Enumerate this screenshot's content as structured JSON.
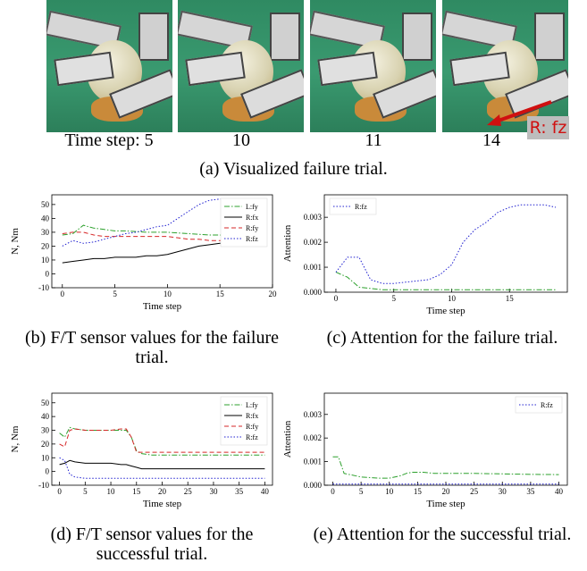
{
  "photos": {
    "labels": [
      "Time step: 5",
      "10",
      "11",
      "14"
    ],
    "annotation": "R: fz",
    "caption": "(a) Visualized failure trial."
  },
  "chart_data": [
    {
      "type": "line",
      "caption": "(b) F/T sensor values for the failure trial.",
      "x_label": "Time step",
      "y_label": "N, Nm",
      "x": [
        0,
        1,
        2,
        3,
        4,
        5,
        6,
        7,
        8,
        9,
        10,
        11,
        12,
        13,
        14,
        15,
        16,
        17,
        18,
        19
      ],
      "xlim": [
        -1,
        20
      ],
      "xticks": [
        0,
        5,
        10,
        15,
        20
      ],
      "ylim": [
        -10,
        57
      ],
      "yticks": [
        -10,
        0,
        10,
        20,
        30,
        40,
        50
      ],
      "legend": "upper right",
      "series": [
        {
          "name": "L:fy",
          "color": "#2ca02c",
          "linestyle": "dashdot",
          "values": [
            28,
            29,
            35,
            33,
            32,
            31,
            31,
            30.5,
            30,
            30,
            30,
            29.5,
            29,
            28.5,
            28,
            28,
            27,
            26,
            25,
            24
          ]
        },
        {
          "name": "R:fx",
          "color": "#000000",
          "linestyle": "solid",
          "values": [
            8,
            9,
            10,
            11,
            11,
            12,
            12,
            12,
            13,
            13,
            14,
            16,
            18,
            20,
            21,
            22,
            22,
            22,
            22,
            22
          ]
        },
        {
          "name": "R:fy",
          "color": "#d62728",
          "linestyle": "dashed",
          "values": [
            29,
            30,
            30,
            28,
            27,
            27,
            27,
            27,
            27,
            27,
            27,
            26,
            25,
            25,
            24,
            24,
            24,
            23,
            23,
            23
          ]
        },
        {
          "name": "R:fz",
          "color": "#2020d0",
          "linestyle": "dotted",
          "values": [
            20,
            24,
            22,
            23,
            25,
            27,
            29,
            30,
            32,
            34,
            35,
            40,
            45,
            50,
            53,
            54,
            54,
            54,
            53,
            52
          ]
        }
      ]
    },
    {
      "type": "line",
      "caption": "(c) Attention for the failure trial.",
      "x_label": "Time step",
      "y_label": "Attention",
      "x": [
        0,
        1,
        2,
        3,
        4,
        5,
        6,
        7,
        8,
        9,
        10,
        11,
        12,
        13,
        14,
        15,
        16,
        17,
        18,
        19
      ],
      "xlim": [
        -1,
        20
      ],
      "xticks": [
        0,
        5,
        10,
        15
      ],
      "ylim": [
        0,
        0.0039
      ],
      "yticks": [
        {
          "value": 0,
          "label": "0.000"
        },
        0.001,
        0.002,
        0.003
      ],
      "legend": "upper left",
      "series": [
        {
          "color": "#2ca02c",
          "linestyle": "dashdot",
          "values": [
            0.0008,
            0.0006,
            0.0002,
            0.00015,
            0.0001,
            0.0001,
            0.0001,
            0.0001,
            0.0001,
            0.0001,
            0.0001,
            0.0001,
            0.0001,
            0.0001,
            0.0001,
            0.0001,
            0.0001,
            0.0001,
            0.0001,
            0.0001
          ]
        },
        {
          "name": "R:fz",
          "color": "#2020d0",
          "linestyle": "dotted",
          "values": [
            0.0008,
            0.0014,
            0.0014,
            0.0005,
            0.00035,
            0.00035,
            0.0004,
            0.00045,
            0.0005,
            0.0007,
            0.0011,
            0.002,
            0.0025,
            0.0028,
            0.0032,
            0.0034,
            0.0035,
            0.0035,
            0.0035,
            0.0034
          ]
        }
      ]
    },
    {
      "type": "line",
      "caption": "(d) F/T sensor values for the successful trial.",
      "x_label": "Time step",
      "y_label": "N, Nm",
      "x": [
        0,
        1,
        2,
        3,
        5,
        8,
        10,
        12,
        13,
        14,
        15,
        16,
        18,
        20,
        25,
        30,
        35,
        40
      ],
      "xlim": [
        -1.5,
        41.5
      ],
      "xticks": [
        0,
        5,
        10,
        15,
        20,
        25,
        30,
        35,
        40
      ],
      "ylim": [
        -10,
        57
      ],
      "yticks": [
        -10,
        0,
        10,
        20,
        30,
        40,
        50
      ],
      "legend": "upper right",
      "series": [
        {
          "name": "L:fy",
          "color": "#2ca02c",
          "linestyle": "dashdot",
          "values": [
            28,
            25,
            32,
            31,
            30,
            30,
            30,
            30,
            30,
            25,
            15,
            13,
            12,
            12,
            12,
            12,
            12,
            12
          ]
        },
        {
          "name": "R:fx",
          "color": "#000000",
          "linestyle": "solid",
          "values": [
            5,
            6,
            8,
            7,
            6,
            6,
            6,
            5,
            5,
            4,
            3,
            2,
            2,
            2,
            2,
            2,
            2,
            2
          ]
        },
        {
          "name": "R:fy",
          "color": "#d62728",
          "linestyle": "dashed",
          "values": [
            20,
            18,
            30,
            31,
            30,
            30,
            30,
            31,
            31,
            25,
            14,
            14,
            14,
            14,
            14,
            14,
            14,
            14
          ]
        },
        {
          "name": "R:fz",
          "color": "#2020d0",
          "linestyle": "dotted",
          "values": [
            10,
            8,
            -2,
            -4,
            -5,
            -5,
            -5,
            -5,
            -5,
            -5,
            -5,
            -5,
            -5,
            -5,
            -5,
            -5,
            -5,
            -5
          ]
        }
      ]
    },
    {
      "type": "line",
      "caption": "(e) Attention for the successful trial.",
      "x_label": "Time step",
      "y_label": "Attention",
      "x": [
        0,
        1,
        2,
        3,
        5,
        8,
        10,
        12,
        13,
        14,
        15,
        16,
        18,
        20,
        25,
        30,
        35,
        40
      ],
      "xlim": [
        -1.5,
        41.5
      ],
      "xticks": [
        0,
        5,
        10,
        15,
        20,
        25,
        30,
        35,
        40
      ],
      "ylim": [
        0,
        0.0039
      ],
      "yticks": [
        {
          "value": 0,
          "label": "0.000"
        },
        0.001,
        0.002,
        0.003
      ],
      "legend": "upper right",
      "series": [
        {
          "color": "#2ca02c",
          "linestyle": "dashdot",
          "values": [
            0.0012,
            0.0012,
            0.0005,
            0.00045,
            0.00035,
            0.0003,
            0.0003,
            0.0004,
            0.0005,
            0.00055,
            0.00055,
            0.00055,
            0.0005,
            0.0005,
            0.0005,
            0.00048,
            0.00046,
            0.00045
          ]
        },
        {
          "name": "R:fz",
          "color": "#2020d0",
          "linestyle": "dotted",
          "values": [
            5e-05,
            5e-05,
            5e-05,
            5e-05,
            5e-05,
            5e-05,
            5e-05,
            5e-05,
            5e-05,
            5e-05,
            5e-05,
            5e-05,
            5e-05,
            5e-05,
            5e-05,
            5e-05,
            5e-05,
            5e-05
          ]
        }
      ]
    }
  ]
}
